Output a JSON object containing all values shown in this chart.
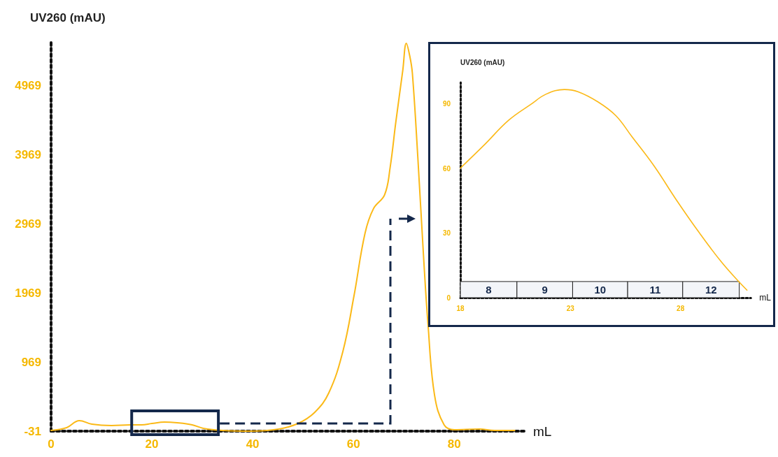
{
  "chart_data": [
    {
      "type": "line",
      "xlabel": "mL",
      "ylabel": "UV260 (mAU)",
      "xlim": [
        0,
        94
      ],
      "xticks": [
        0,
        20,
        40,
        60,
        80
      ],
      "ylim": [
        -31,
        5600
      ],
      "yticks": [
        -31,
        969,
        1969,
        2969,
        3969,
        4969
      ],
      "x": [
        0,
        3.1,
        5.6,
        8.1,
        12,
        15.8,
        18,
        20,
        22.5,
        25,
        28,
        30.2,
        34.1,
        39.6,
        45.2,
        49,
        52.3,
        55.1,
        57.9,
        60.1,
        62.3,
        64,
        66.2,
        67.3,
        68.4,
        69.8,
        70.5,
        71.2,
        71.7,
        72.8,
        73.9,
        74.8,
        76.1,
        78,
        80,
        85,
        88,
        92
      ],
      "series": [
        {
          "color": "#fbb917",
          "values": [
            -20,
            20,
            120,
            70,
            50,
            60,
            60,
            80,
            100,
            90,
            60,
            10,
            -20,
            -30,
            0,
            80,
            240,
            520,
            1120,
            1920,
            2830,
            3190,
            3390,
            3790,
            4430,
            5190,
            5580,
            5390,
            5150,
            3910,
            2520,
            1520,
            490,
            60,
            -10,
            0,
            -20,
            -20
          ]
        }
      ]
    },
    {
      "type": "line",
      "xlabel": "mL",
      "ylabel": "UV260 (mAU)",
      "xlim": [
        18,
        31.2
      ],
      "xticks": [
        18,
        23,
        28
      ],
      "ylim": [
        0,
        100
      ],
      "yticks": [
        0,
        30,
        60,
        90
      ],
      "x": [
        18,
        19.07,
        20.19,
        21.2,
        21.9,
        22.73,
        23.34,
        24.26,
        25.07,
        25.78,
        26.8,
        27.82,
        28.83,
        29.85,
        30.67,
        31.02
      ],
      "series": [
        {
          "color": "#fbb917",
          "values": [
            60.2,
            70.8,
            82.4,
            89.8,
            94.6,
            96.7,
            95.7,
            90.9,
            84.5,
            75,
            61.2,
            45.3,
            30.5,
            16.7,
            7.2,
            3.5
          ]
        }
      ],
      "bands": [
        {
          "axis": "x",
          "from": 18,
          "to": 20.57,
          "label": "8",
          "color": "#f3f5f9"
        },
        {
          "axis": "x",
          "from": 20.57,
          "to": 23.1,
          "label": "9",
          "color": "#f3f5f9"
        },
        {
          "axis": "x",
          "from": 23.1,
          "to": 25.6,
          "label": "10",
          "color": "#f3f5f9"
        },
        {
          "axis": "x",
          "from": 25.6,
          "to": 28.1,
          "label": "11",
          "color": "#f3f5f9"
        },
        {
          "axis": "x",
          "from": 28.1,
          "to": 30.67,
          "label": "12",
          "color": "#f3f5f9"
        }
      ]
    }
  ]
}
